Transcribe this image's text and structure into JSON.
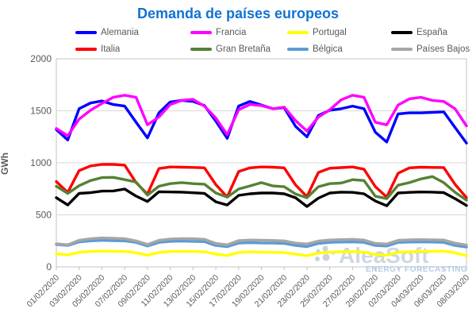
{
  "title": "Demanda de países europeos",
  "colors": {
    "title": "#1272d2",
    "axis_text": "#595959",
    "gridline": "#d9d9d9",
    "plot_border": "#c3c3c3",
    "watermark_text": "#c7d1de",
    "watermark_subtext": "#a9c4e3",
    "watermark_dot": "#c2cbd8"
  },
  "watermark": {
    "text": "AleaSoft",
    "subtext": "ENERGY FORECASTING"
  },
  "chart_data": {
    "type": "line",
    "title": "Demanda de países europeos",
    "xlabel": "",
    "ylabel": "GWh",
    "ylim": [
      0,
      2000
    ],
    "yticks": [
      0,
      500,
      1000,
      1500,
      2000
    ],
    "grid": "horizontal",
    "legend_position": "top",
    "x_tick_every": 2,
    "categories": [
      "01/02/2020",
      "02/02/2020",
      "03/02/2020",
      "04/02/2020",
      "05/02/2020",
      "06/02/2020",
      "07/02/2020",
      "08/02/2020",
      "09/02/2020",
      "10/02/2020",
      "11/02/2020",
      "12/02/2020",
      "13/02/2020",
      "14/02/2020",
      "15/02/2020",
      "16/02/2020",
      "17/02/2020",
      "18/02/2020",
      "19/02/2020",
      "20/02/2020",
      "21/02/2020",
      "22/02/2020",
      "23/02/2020",
      "24/02/2020",
      "25/02/2020",
      "26/02/2020",
      "27/02/2020",
      "28/02/2020",
      "29/02/2020",
      "01/03/2020",
      "02/03/2020",
      "03/03/2020",
      "04/03/2020",
      "05/03/2020",
      "06/03/2020",
      "07/03/2020",
      "08/03/2020"
    ],
    "series": [
      {
        "name": "Alemania",
        "color": "#0000fe",
        "values": [
          1320,
          1220,
          1520,
          1575,
          1595,
          1560,
          1545,
          1390,
          1240,
          1480,
          1585,
          1600,
          1590,
          1550,
          1400,
          1235,
          1545,
          1590,
          1555,
          1520,
          1530,
          1350,
          1250,
          1455,
          1505,
          1520,
          1545,
          1520,
          1295,
          1200,
          1470,
          1480,
          1480,
          1485,
          1490,
          1340,
          1190
        ]
      },
      {
        "name": "Francia",
        "color": "#ff00ff",
        "values": [
          1330,
          1260,
          1420,
          1505,
          1570,
          1630,
          1650,
          1630,
          1366,
          1440,
          1560,
          1600,
          1610,
          1545,
          1430,
          1270,
          1510,
          1560,
          1550,
          1520,
          1535,
          1405,
          1305,
          1440,
          1510,
          1605,
          1650,
          1630,
          1390,
          1365,
          1555,
          1615,
          1630,
          1600,
          1590,
          1520,
          1355
        ]
      },
      {
        "name": "Portugal",
        "color": "#ffff00",
        "values": [
          125,
          115,
          140,
          148,
          152,
          150,
          148,
          135,
          112,
          138,
          148,
          150,
          148,
          145,
          122,
          110,
          138,
          144,
          142,
          140,
          138,
          122,
          108,
          132,
          142,
          145,
          146,
          142,
          118,
          112,
          140,
          145,
          148,
          150,
          152,
          135,
          108
        ]
      },
      {
        "name": "España",
        "color": "#000000",
        "values": [
          665,
          595,
          706,
          713,
          728,
          730,
          748,
          680,
          628,
          722,
          720,
          718,
          712,
          706,
          625,
          595,
          687,
          702,
          710,
          710,
          702,
          664,
          580,
          660,
          710,
          718,
          716,
          702,
          633,
          587,
          710,
          716,
          720,
          718,
          714,
          656,
          590
        ]
      },
      {
        "name": "Italia",
        "color": "#fe0000",
        "values": [
          820,
          715,
          925,
          970,
          985,
          985,
          978,
          810,
          700,
          945,
          960,
          958,
          956,
          952,
          790,
          671,
          916,
          952,
          960,
          958,
          952,
          787,
          675,
          908,
          948,
          954,
          960,
          938,
          771,
          671,
          900,
          952,
          958,
          956,
          955,
          793,
          665
        ]
      },
      {
        "name": "Gran Bretaña",
        "color": "#548235",
        "values": [
          775,
          705,
          780,
          830,
          858,
          860,
          838,
          815,
          690,
          775,
          800,
          810,
          800,
          795,
          710,
          670,
          748,
          778,
          810,
          778,
          770,
          700,
          664,
          770,
          800,
          805,
          838,
          830,
          679,
          656,
          785,
          810,
          845,
          868,
          810,
          717,
          641
        ]
      },
      {
        "name": "Bélgica",
        "color": "#5b9bd5",
        "values": [
          215,
          205,
          240,
          250,
          255,
          252,
          250,
          235,
          200,
          235,
          245,
          248,
          245,
          242,
          205,
          195,
          228,
          232,
          230,
          228,
          225,
          205,
          195,
          225,
          235,
          238,
          240,
          235,
          205,
          200,
          235,
          238,
          240,
          238,
          235,
          205,
          190
        ]
      },
      {
        "name": "Países Bajos",
        "color": "#a6a6a6",
        "values": [
          222,
          212,
          255,
          270,
          278,
          275,
          270,
          250,
          215,
          255,
          268,
          272,
          270,
          265,
          225,
          212,
          252,
          258,
          256,
          254,
          250,
          228,
          220,
          248,
          258,
          262,
          265,
          258,
          225,
          220,
          255,
          260,
          262,
          260,
          258,
          228,
          210
        ]
      }
    ]
  }
}
